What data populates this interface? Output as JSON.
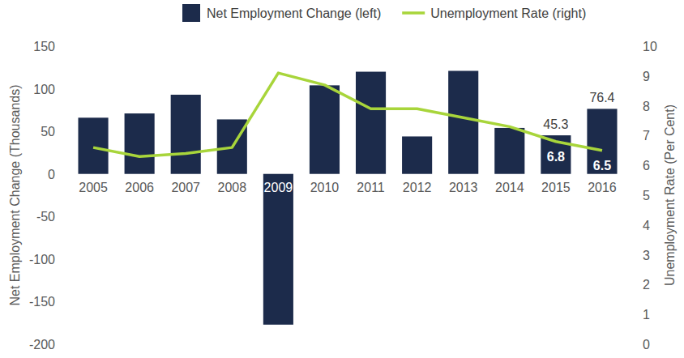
{
  "chart_data": {
    "type": "bar",
    "categories": [
      "2005",
      "2006",
      "2007",
      "2008",
      "2009",
      "2010",
      "2011",
      "2012",
      "2013",
      "2014",
      "2015",
      "2016"
    ],
    "series": [
      {
        "name": "Net Employment Change (left)",
        "type": "bar",
        "color": "#1c2b4b",
        "values": [
          66,
          71,
          93,
          64,
          -177,
          104,
          120,
          44,
          121,
          54,
          45.3,
          76.4
        ],
        "value_labels": [
          null,
          null,
          null,
          null,
          null,
          null,
          null,
          null,
          null,
          null,
          "45.3",
          "76.4"
        ]
      },
      {
        "name": "Unemployment Rate (right)",
        "type": "line",
        "color": "#a8d53b",
        "axis": "y2",
        "values": [
          6.6,
          6.3,
          6.4,
          6.6,
          9.1,
          8.7,
          7.9,
          7.9,
          7.6,
          7.3,
          6.8,
          6.5
        ],
        "value_labels": [
          null,
          null,
          null,
          null,
          null,
          null,
          null,
          null,
          null,
          null,
          "6.8",
          "6.5"
        ]
      }
    ],
    "y_label": "Net Employment Change (Thousands)",
    "y2_label": "Unemployment Rate (Per Cent)",
    "ylim": [
      -200,
      150
    ],
    "yticks": [
      -200,
      -150,
      -100,
      -50,
      0,
      50,
      100,
      150
    ],
    "y2lim": [
      0,
      10
    ],
    "y2ticks": [
      0,
      1,
      2,
      3,
      4,
      5,
      6,
      7,
      8,
      9,
      10
    ],
    "legend": "top",
    "grid": false
  }
}
